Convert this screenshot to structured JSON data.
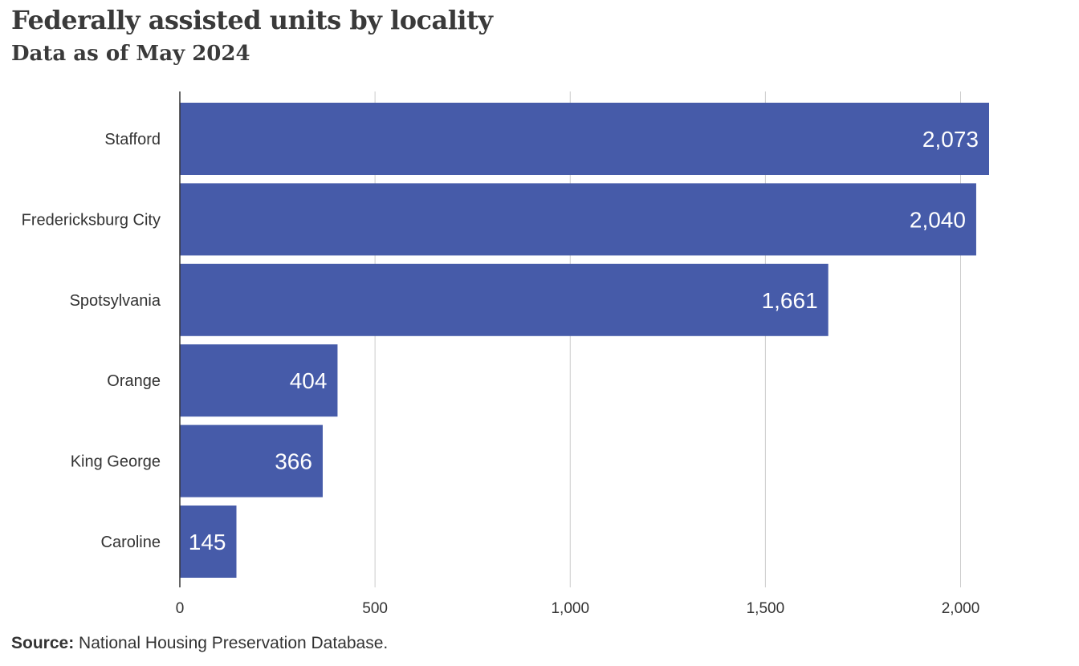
{
  "header": {
    "title": "Federally assisted units by locality",
    "subtitle": "Data as of May 2024"
  },
  "footer": {
    "source_label": "Source:",
    "source_text": " National Housing Preservation Database."
  },
  "colors": {
    "bar": "#465BA9",
    "bar_label": "#ffffff",
    "grid": "#cccccc",
    "axis": "#333333",
    "text": "#333333"
  },
  "chart_data": {
    "type": "bar",
    "orientation": "horizontal",
    "categories": [
      "Stafford",
      "Fredericksburg City",
      "Spotsylvania",
      "Orange",
      "King George",
      "Caroline"
    ],
    "values": [
      2073,
      2040,
      1661,
      404,
      366,
      145
    ],
    "value_labels": [
      "2,073",
      "2,040",
      "1,661",
      "404",
      "366",
      "145"
    ],
    "xlim": [
      0,
      2073
    ],
    "x_ticks": [
      0,
      500,
      1000,
      1500,
      2000
    ],
    "x_tick_labels": [
      "0",
      "500",
      "1,000",
      "1,500",
      "2,000"
    ],
    "grid": true
  }
}
